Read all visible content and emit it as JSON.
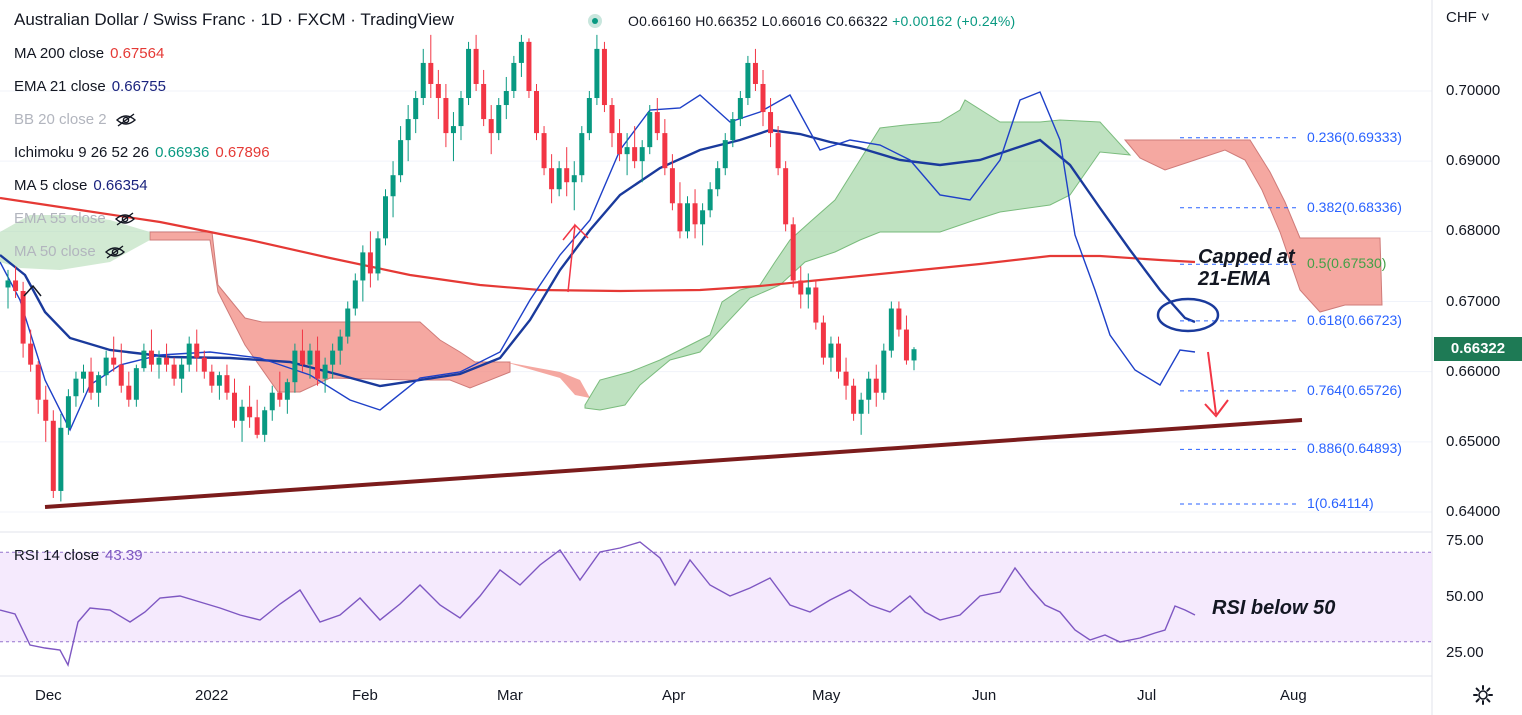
{
  "header": {
    "symbol_title": "Australian Dollar / Swiss Franc · 1D · FXCM · TradingView",
    "ohlc": {
      "open": "O0.66160",
      "high": "H0.66352",
      "low": "L0.66016",
      "close": "C0.66322",
      "change": "+0.00162 (+0.24%)"
    },
    "currency_menu": "CHF ˅"
  },
  "indicators": [
    {
      "label": "MA 200 close",
      "value": "0.67564",
      "color": "#e53935",
      "visible": true
    },
    {
      "label": "EMA 21 close",
      "value": "0.66755",
      "color": "#1a237e",
      "visible": true
    },
    {
      "label": "BB 20 close 2",
      "value": "",
      "color": "#b2b5be",
      "visible": false
    },
    {
      "label": "Ichimoku 9 26 52 26",
      "value": "0.66936",
      "value2": "0.67896",
      "color": "#089981",
      "color2": "#e53935",
      "visible": true
    },
    {
      "label": "MA 5 close",
      "value": "0.66354",
      "color": "#1a237e",
      "visible": true
    },
    {
      "label": "EMA 55 close",
      "value": "",
      "color": "#b2b5be",
      "visible": false
    },
    {
      "label": "MA 50 close",
      "value": "",
      "color": "#b2b5be",
      "visible": false
    }
  ],
  "price_axis": {
    "ticks": [
      "0.70000",
      "0.69000",
      "0.68000",
      "0.67000",
      "0.66000",
      "0.65000",
      "0.64000"
    ],
    "last_price": "0.66322",
    "last_price_color": "#1e7a55"
  },
  "time_axis": {
    "ticks": [
      "Dec",
      "2022",
      "Feb",
      "Mar",
      "Apr",
      "May",
      "Jun",
      "Jul",
      "Aug"
    ]
  },
  "fibonacci": [
    {
      "label": "0.236(0.69333)",
      "price": 0.69333
    },
    {
      "label": "0.382(0.68336)",
      "price": 0.68336
    },
    {
      "label": "0.5(0.67530)",
      "price": 0.6753
    },
    {
      "label": "0.618(0.66723)",
      "price": 0.66723
    },
    {
      "label": "0.764(0.65726)",
      "price": 0.65726
    },
    {
      "label": "0.886(0.64893)",
      "price": 0.64893
    },
    {
      "label": "1(0.64114)",
      "price": 0.64114
    }
  ],
  "annotations": {
    "ema_cap": [
      "Capped at",
      "21-EMA"
    ],
    "rsi_note": "RSI below 50"
  },
  "rsi_pane": {
    "label": "RSI 14 close",
    "value": "43.39",
    "ticks": [
      "75.00",
      "50.00",
      "25.00"
    ],
    "band": [
      30,
      70
    ],
    "color": "#7e57c2"
  },
  "colors": {
    "up": "#089981",
    "down": "#f23645",
    "ma200": "#e53935",
    "ema21": "#1a3a9c",
    "ma5": "#1e40c8",
    "trendline": "#7b1c1c",
    "cloud_bull": "#a5d6a7",
    "cloud_bear": "#f28b82"
  },
  "chart_data": {
    "type": "candlestick",
    "title": "Australian Dollar / Swiss Franc · 1D · FXCM · TradingView",
    "ylim": [
      0.6375,
      0.7135
    ],
    "x": [
      "Dec",
      "2022",
      "Feb",
      "Mar",
      "Apr",
      "May",
      "Jun",
      "Jul",
      "Aug"
    ],
    "series": [
      {
        "name": "MA 200 close",
        "last": 0.67564
      },
      {
        "name": "EMA 21 close",
        "last": 0.66755
      },
      {
        "name": "MA 5 close",
        "last": 0.66354
      }
    ],
    "candles": [
      [
        0.672,
        0.6745,
        0.669,
        0.673
      ],
      [
        0.673,
        0.675,
        0.6705,
        0.6715
      ],
      [
        0.6715,
        0.6728,
        0.662,
        0.664
      ],
      [
        0.664,
        0.666,
        0.66,
        0.661
      ],
      [
        0.661,
        0.6615,
        0.654,
        0.656
      ],
      [
        0.656,
        0.658,
        0.65,
        0.653
      ],
      [
        0.653,
        0.6545,
        0.642,
        0.643
      ],
      [
        0.643,
        0.654,
        0.6415,
        0.652
      ],
      [
        0.652,
        0.6575,
        0.651,
        0.6565
      ],
      [
        0.6565,
        0.66,
        0.655,
        0.659
      ],
      [
        0.659,
        0.661,
        0.657,
        0.66
      ],
      [
        0.66,
        0.662,
        0.656,
        0.657
      ],
      [
        0.657,
        0.66,
        0.655,
        0.6595
      ],
      [
        0.6595,
        0.663,
        0.658,
        0.662
      ],
      [
        0.662,
        0.665,
        0.66,
        0.661
      ],
      [
        0.661,
        0.664,
        0.657,
        0.658
      ],
      [
        0.658,
        0.66,
        0.655,
        0.656
      ],
      [
        0.656,
        0.661,
        0.655,
        0.6605
      ],
      [
        0.6605,
        0.664,
        0.66,
        0.663
      ],
      [
        0.663,
        0.666,
        0.66,
        0.661
      ],
      [
        0.661,
        0.663,
        0.659,
        0.662
      ],
      [
        0.662,
        0.664,
        0.66,
        0.661
      ],
      [
        0.661,
        0.662,
        0.658,
        0.659
      ],
      [
        0.659,
        0.662,
        0.657,
        0.661
      ],
      [
        0.661,
        0.665,
        0.66,
        0.664
      ],
      [
        0.664,
        0.666,
        0.66,
        0.662
      ],
      [
        0.662,
        0.663,
        0.659,
        0.66
      ],
      [
        0.66,
        0.661,
        0.657,
        0.658
      ],
      [
        0.658,
        0.66,
        0.656,
        0.6595
      ],
      [
        0.6595,
        0.661,
        0.656,
        0.657
      ],
      [
        0.657,
        0.659,
        0.652,
        0.653
      ],
      [
        0.653,
        0.656,
        0.65,
        0.655
      ],
      [
        0.655,
        0.658,
        0.652,
        0.6535
      ],
      [
        0.6535,
        0.656,
        0.6505,
        0.651
      ],
      [
        0.651,
        0.655,
        0.65,
        0.6545
      ],
      [
        0.6545,
        0.658,
        0.653,
        0.657
      ],
      [
        0.657,
        0.66,
        0.655,
        0.656
      ],
      [
        0.656,
        0.659,
        0.654,
        0.6585
      ],
      [
        0.6585,
        0.664,
        0.657,
        0.663
      ],
      [
        0.663,
        0.666,
        0.66,
        0.661
      ],
      [
        0.661,
        0.664,
        0.659,
        0.663
      ],
      [
        0.663,
        0.665,
        0.658,
        0.659
      ],
      [
        0.659,
        0.662,
        0.657,
        0.661
      ],
      [
        0.661,
        0.664,
        0.659,
        0.663
      ],
      [
        0.663,
        0.666,
        0.661,
        0.665
      ],
      [
        0.665,
        0.67,
        0.664,
        0.669
      ],
      [
        0.669,
        0.674,
        0.668,
        0.673
      ],
      [
        0.673,
        0.678,
        0.67,
        0.677
      ],
      [
        0.677,
        0.68,
        0.672,
        0.674
      ],
      [
        0.674,
        0.68,
        0.673,
        0.679
      ],
      [
        0.679,
        0.686,
        0.678,
        0.685
      ],
      [
        0.685,
        0.69,
        0.682,
        0.688
      ],
      [
        0.688,
        0.695,
        0.687,
        0.693
      ],
      [
        0.693,
        0.698,
        0.69,
        0.696
      ],
      [
        0.696,
        0.7,
        0.694,
        0.699
      ],
      [
        0.699,
        0.706,
        0.698,
        0.704
      ],
      [
        0.704,
        0.708,
        0.699,
        0.701
      ],
      [
        0.701,
        0.703,
        0.696,
        0.699
      ],
      [
        0.699,
        0.701,
        0.692,
        0.694
      ],
      [
        0.694,
        0.697,
        0.69,
        0.695
      ],
      [
        0.695,
        0.7,
        0.693,
        0.699
      ],
      [
        0.699,
        0.707,
        0.698,
        0.706
      ],
      [
        0.706,
        0.708,
        0.7,
        0.701
      ],
      [
        0.701,
        0.703,
        0.695,
        0.696
      ],
      [
        0.696,
        0.698,
        0.691,
        0.694
      ],
      [
        0.694,
        0.699,
        0.693,
        0.698
      ],
      [
        0.698,
        0.702,
        0.696,
        0.7
      ],
      [
        0.7,
        0.705,
        0.699,
        0.704
      ],
      [
        0.704,
        0.708,
        0.702,
        0.707
      ],
      [
        0.707,
        0.7075,
        0.699,
        0.7
      ],
      [
        0.7,
        0.701,
        0.693,
        0.694
      ],
      [
        0.694,
        0.695,
        0.688,
        0.689
      ],
      [
        0.689,
        0.691,
        0.684,
        0.686
      ],
      [
        0.686,
        0.69,
        0.685,
        0.689
      ],
      [
        0.689,
        0.692,
        0.685,
        0.687
      ],
      [
        0.687,
        0.69,
        0.683,
        0.688
      ],
      [
        0.688,
        0.695,
        0.687,
        0.694
      ],
      [
        0.694,
        0.7,
        0.693,
        0.699
      ],
      [
        0.699,
        0.708,
        0.698,
        0.706
      ],
      [
        0.706,
        0.707,
        0.697,
        0.698
      ],
      [
        0.698,
        0.699,
        0.692,
        0.694
      ],
      [
        0.694,
        0.696,
        0.69,
        0.691
      ],
      [
        0.691,
        0.694,
        0.688,
        0.692
      ],
      [
        0.692,
        0.695,
        0.689,
        0.69
      ],
      [
        0.69,
        0.693,
        0.687,
        0.692
      ],
      [
        0.692,
        0.698,
        0.691,
        0.697
      ],
      [
        0.697,
        0.699,
        0.693,
        0.694
      ],
      [
        0.694,
        0.696,
        0.688,
        0.689
      ],
      [
        0.689,
        0.691,
        0.683,
        0.684
      ],
      [
        0.684,
        0.687,
        0.679,
        0.68
      ],
      [
        0.68,
        0.685,
        0.679,
        0.684
      ],
      [
        0.684,
        0.686,
        0.679,
        0.681
      ],
      [
        0.681,
        0.684,
        0.678,
        0.683
      ],
      [
        0.683,
        0.687,
        0.682,
        0.686
      ],
      [
        0.686,
        0.69,
        0.685,
        0.689
      ],
      [
        0.689,
        0.694,
        0.688,
        0.693
      ],
      [
        0.693,
        0.697,
        0.692,
        0.696
      ],
      [
        0.696,
        0.7,
        0.695,
        0.699
      ],
      [
        0.699,
        0.705,
        0.698,
        0.704
      ],
      [
        0.704,
        0.706,
        0.7,
        0.701
      ],
      [
        0.701,
        0.703,
        0.695,
        0.697
      ],
      [
        0.697,
        0.699,
        0.692,
        0.694
      ],
      [
        0.694,
        0.695,
        0.688,
        0.689
      ],
      [
        0.689,
        0.69,
        0.68,
        0.681
      ],
      [
        0.681,
        0.682,
        0.672,
        0.673
      ],
      [
        0.673,
        0.675,
        0.669,
        0.671
      ],
      [
        0.671,
        0.674,
        0.669,
        0.672
      ],
      [
        0.672,
        0.673,
        0.666,
        0.667
      ],
      [
        0.667,
        0.668,
        0.661,
        0.662
      ],
      [
        0.662,
        0.665,
        0.66,
        0.664
      ],
      [
        0.664,
        0.665,
        0.659,
        0.66
      ],
      [
        0.66,
        0.662,
        0.656,
        0.658
      ],
      [
        0.658,
        0.659,
        0.653,
        0.654
      ],
      [
        0.654,
        0.657,
        0.651,
        0.656
      ],
      [
        0.656,
        0.66,
        0.654,
        0.659
      ],
      [
        0.659,
        0.661,
        0.655,
        0.657
      ],
      [
        0.657,
        0.664,
        0.656,
        0.663
      ],
      [
        0.663,
        0.67,
        0.662,
        0.669
      ],
      [
        0.669,
        0.67,
        0.665,
        0.666
      ],
      [
        0.666,
        0.668,
        0.661,
        0.6616
      ],
      [
        0.6616,
        0.6635,
        0.6602,
        0.6632
      ]
    ]
  }
}
